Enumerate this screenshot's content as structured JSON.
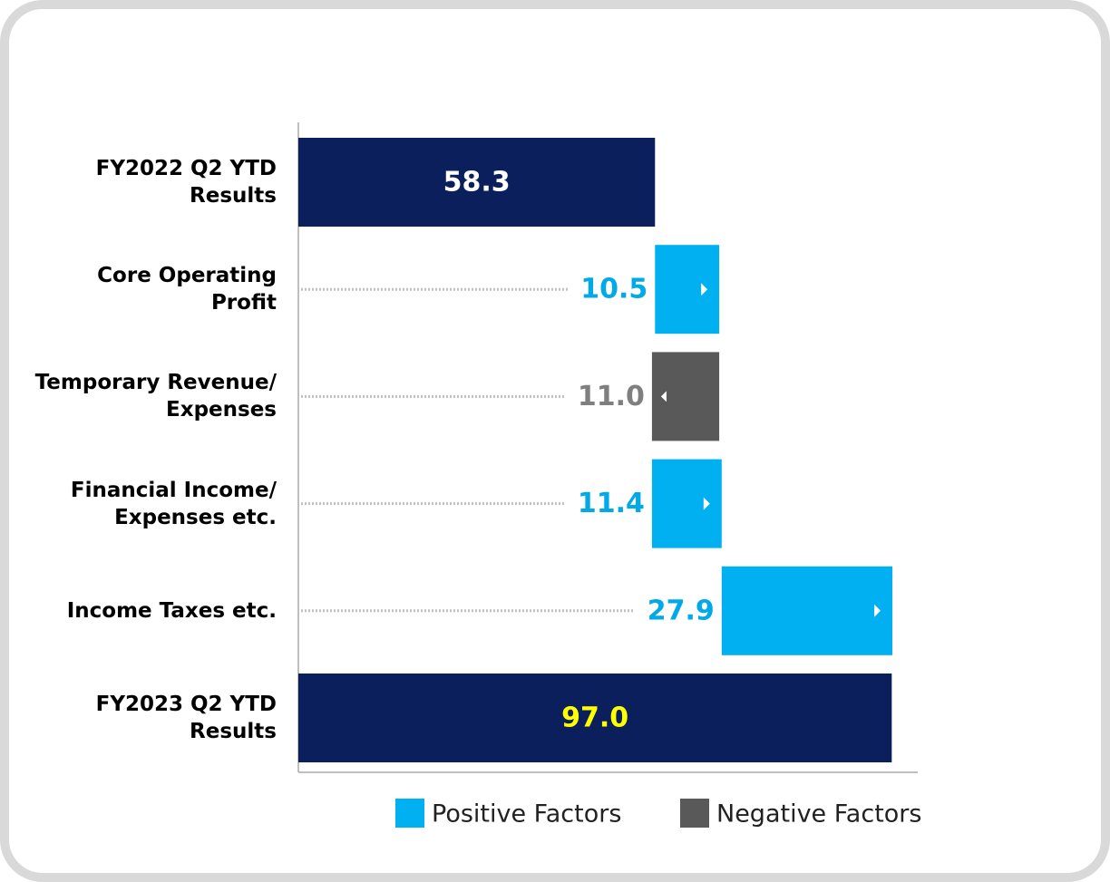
{
  "chart_data": {
    "type": "waterfall",
    "categories": [
      "FY2022 Q2 YTD\nResults",
      "Core Operating\nProfit",
      "Temporary Revenue/\nExpenses",
      "Financial Income/\nExpenses etc.",
      "Income Taxes etc.",
      "FY2023 Q2 YTD\nResults"
    ],
    "values": [
      58.3,
      10.5,
      -11.0,
      11.4,
      27.9,
      97.0
    ],
    "value_labels": [
      "58.3",
      "10.5",
      "11.0",
      "11.4",
      "27.9",
      "97.0"
    ],
    "total_color": "#0b1f5c",
    "series": [
      {
        "name": "Positive Factors",
        "color": "#00b0f0"
      },
      {
        "name": "Negative Factors",
        "color": "#595959"
      }
    ],
    "legend": "bottom"
  }
}
